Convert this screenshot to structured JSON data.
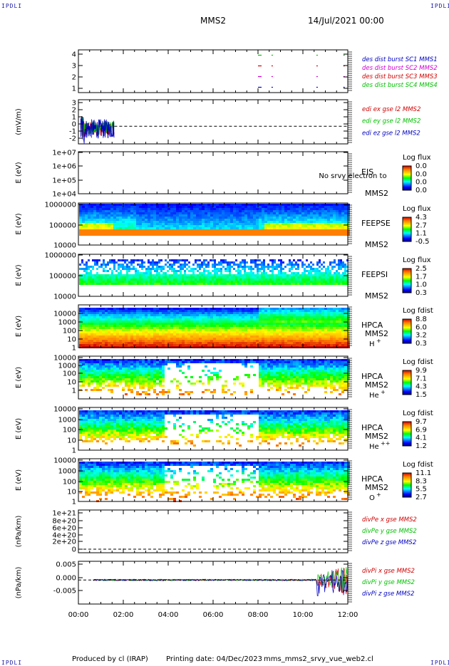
{
  "header": {
    "logo_left": "IPDLI",
    "logo_right": "IPDLI",
    "spacecraft": "MMS2",
    "date": "14/Jul/2021 00:00"
  },
  "footer": {
    "producer": "Produced by cl (IRAP)",
    "printing_date": "Printing date: 04/Dec/2023",
    "script": "mms_mms2_srvy_vue_web2.cl",
    "logo_left": "IPDLI",
    "logo_right": "IPDLI"
  },
  "colors": {
    "red": "#d00000",
    "green": "#00c000",
    "blue": "#0000c0",
    "magenta": "#d000d0"
  },
  "chart_data": [
    {
      "type": "line",
      "panel": "burst",
      "ylim": [
        0.5,
        4.5
      ],
      "y_ticks": [
        "4",
        "3",
        "2",
        "1"
      ],
      "x_ticks": [
        "00:00",
        "02:00",
        "04:00",
        "06:00",
        "08:00",
        "10:00",
        "12:00"
      ],
      "x_range_hours": [
        0,
        12
      ],
      "series": [
        {
          "name": "des dist burst SC1 MMS1",
          "color": "#0000c0",
          "level": 1
        },
        {
          "name": "des dist burst SC2 MMS2",
          "color": "#d000d0",
          "level": 2
        },
        {
          "name": "des dist burst SC3 MMS3",
          "color": "#d00000",
          "level": 3
        },
        {
          "name": "des dist burst SC4 MMS4",
          "color": "#00c000",
          "level": 4
        }
      ],
      "burst_times_hours": [
        8.0,
        8.6,
        10.6,
        11.8
      ]
    },
    {
      "type": "line",
      "panel": "edi",
      "ylabel": "(mV/m)",
      "ylim": [
        -2,
        3
      ],
      "y_ticks": [
        "3",
        "2",
        "1",
        "0",
        "-1",
        "-2"
      ],
      "series": [
        {
          "name": "edi ex gse l2 MMS2",
          "color": "#d00000"
        },
        {
          "name": "edi ey gse l2 MMS2",
          "color": "#00c000"
        },
        {
          "name": "edi ez gse l2 MMS2",
          "color": "#0000c0"
        }
      ],
      "data_span_hours": [
        0.1,
        1.6
      ]
    },
    {
      "type": "heatmap",
      "panel": "EIS",
      "ylabel": "E (eV)",
      "y_ticks": [
        "1e+07",
        "1e+06",
        "1e+05",
        "1e+04"
      ],
      "instrument": "EIS",
      "sc": "MMS2",
      "overlay_text": "No srvy electron to",
      "colorbar_title": "Log flux",
      "colorbar_ticks": [
        "0.0",
        "0.0",
        "0.0",
        "0.0"
      ],
      "empty": true
    },
    {
      "type": "heatmap",
      "panel": "FEEPSE",
      "ylabel": "E (eV)",
      "y_ticks": [
        "1000000",
        "100000",
        "10000"
      ],
      "instrument": "FEEPSE",
      "sc": "MMS2",
      "colorbar_title": "Log flux",
      "colorbar_ticks": [
        "4.3",
        "2.7",
        "1.1",
        "-0.5"
      ]
    },
    {
      "type": "heatmap",
      "panel": "FEEPSI",
      "ylabel": "E (eV)",
      "y_ticks": [
        "1000000",
        "100000",
        "10000"
      ],
      "instrument": "FEEPSI",
      "sc": "MMS2",
      "colorbar_title": "Log flux",
      "colorbar_ticks": [
        "2.5",
        "1.7",
        "1.0",
        "0.3"
      ]
    },
    {
      "type": "heatmap",
      "panel": "HPCA H+",
      "ylabel": "E (eV)",
      "y_ticks": [
        "10000",
        "1000",
        "100",
        "10",
        "1"
      ],
      "instrument": "HPCA",
      "sc": "MMS2",
      "species": "H",
      "charge": "+",
      "colorbar_title": "Log fdist",
      "colorbar_ticks": [
        "8.8",
        "6.0",
        "3.2",
        "0.3"
      ]
    },
    {
      "type": "heatmap",
      "panel": "HPCA He+",
      "ylabel": "E (eV)",
      "y_ticks": [
        "10000",
        "1000",
        "100",
        "10",
        "1"
      ],
      "instrument": "HPCA",
      "sc": "MMS2",
      "species": "He",
      "charge": "+",
      "colorbar_title": "Log fdist",
      "colorbar_ticks": [
        "9.9",
        "7.1",
        "4.3",
        "1.5"
      ]
    },
    {
      "type": "heatmap",
      "panel": "HPCA He++",
      "ylabel": "E (eV)",
      "y_ticks": [
        "10000",
        "1000",
        "100",
        "10",
        "1"
      ],
      "instrument": "HPCA",
      "sc": "MMS2",
      "species": "He",
      "charge": "++",
      "colorbar_title": "Log fdist",
      "colorbar_ticks": [
        "9.7",
        "6.9",
        "4.1",
        "1.2"
      ]
    },
    {
      "type": "heatmap",
      "panel": "HPCA O+",
      "ylabel": "E (eV)",
      "y_ticks": [
        "10000",
        "1000",
        "100",
        "10",
        "1"
      ],
      "instrument": "HPCA",
      "sc": "MMS2",
      "species": "O",
      "charge": "+",
      "colorbar_title": "Log fdist",
      "colorbar_ticks": [
        "11.1",
        "8.3",
        "5.5",
        "2.7"
      ]
    },
    {
      "type": "line",
      "panel": "divPe",
      "ylabel": "(nPa/km)",
      "y_ticks": [
        "1e+21",
        "8e+20",
        "6e+20",
        "4e+20",
        "2e+20",
        "0"
      ],
      "ylim": [
        0,
        1e+21
      ],
      "series": [
        {
          "name": "divPe x gse MMS2",
          "color": "#d00000"
        },
        {
          "name": "divPe y gse MMS2",
          "color": "#00c000"
        },
        {
          "name": "divPe z gse MMS2",
          "color": "#0000c0"
        }
      ]
    },
    {
      "type": "line",
      "panel": "divPi",
      "ylabel": "(nPa/km)",
      "y_ticks": [
        "0.005",
        "0.000",
        "-0.005"
      ],
      "ylim": [
        -0.009,
        0.007
      ],
      "series": [
        {
          "name": "divPi x gse MMS2",
          "color": "#d00000"
        },
        {
          "name": "divPi y gse MMS2",
          "color": "#00c000"
        },
        {
          "name": "divPi z gse MMS2",
          "color": "#0000c0"
        }
      ]
    }
  ]
}
